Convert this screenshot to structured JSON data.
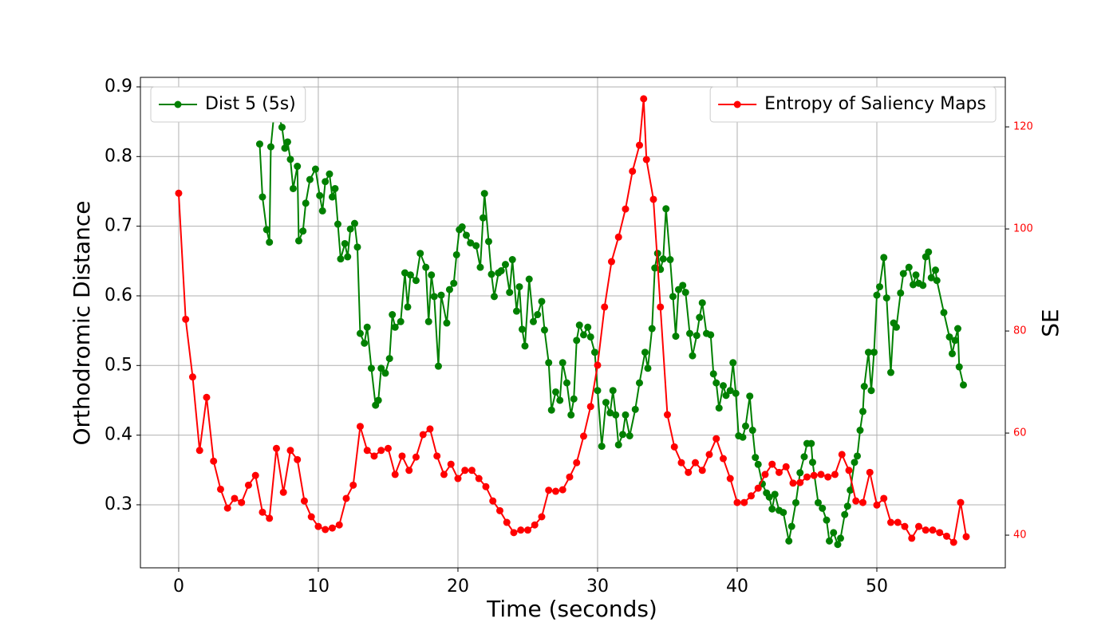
{
  "chart_data": {
    "type": "line",
    "x_label": "Time (seconds)",
    "y_label": "Orthodromic Distance",
    "y2_label": "SE",
    "xlim": [
      -2.74,
      59.2
    ],
    "xticks": [
      0,
      10,
      20,
      30,
      40,
      50
    ],
    "ylim": [
      0.2095,
      0.9137
    ],
    "yticks": [
      0.3,
      0.4,
      0.5,
      0.6,
      0.7,
      0.8,
      0.9
    ],
    "y2lim": [
      33.6,
      129.7
    ],
    "y2ticks": [
      40,
      60,
      80,
      100,
      120
    ],
    "grid": true,
    "series": [
      {
        "name": "Dist 5 (5s)",
        "color": "#008000",
        "axis": "y",
        "legend": "upper left",
        "x": [
          5.8,
          6.0,
          6.3,
          6.5,
          6.6,
          6.9,
          7.2,
          7.4,
          7.6,
          7.8,
          8.0,
          8.2,
          8.5,
          8.6,
          8.9,
          9.1,
          9.4,
          9.8,
          10.1,
          10.3,
          10.5,
          10.8,
          11.0,
          11.2,
          11.4,
          11.6,
          11.9,
          12.1,
          12.3,
          12.6,
          12.8,
          13.0,
          13.3,
          13.5,
          13.8,
          14.1,
          14.3,
          14.5,
          14.8,
          15.1,
          15.3,
          15.5,
          15.9,
          16.2,
          16.4,
          16.6,
          17.0,
          17.3,
          17.7,
          17.9,
          18.1,
          18.3,
          18.6,
          18.8,
          19.2,
          19.4,
          19.7,
          19.9,
          20.1,
          20.3,
          20.6,
          20.9,
          21.3,
          21.6,
          21.8,
          21.9,
          22.2,
          22.4,
          22.6,
          22.9,
          23.1,
          23.4,
          23.7,
          23.9,
          24.2,
          24.4,
          24.6,
          24.8,
          25.1,
          25.4,
          25.7,
          26.0,
          26.2,
          26.5,
          26.7,
          27.0,
          27.3,
          27.5,
          27.8,
          28.1,
          28.3,
          28.5,
          28.7,
          29.0,
          29.3,
          29.5,
          29.8,
          30.0,
          30.3,
          30.6,
          30.9,
          31.1,
          31.3,
          31.5,
          31.8,
          32.0,
          32.3,
          32.7,
          33.0,
          33.4,
          33.6,
          33.9,
          34.1,
          34.3,
          34.5,
          34.7,
          34.9,
          35.2,
          35.4,
          35.6,
          35.8,
          36.1,
          36.3,
          36.6,
          36.8,
          37.1,
          37.3,
          37.5,
          37.8,
          38.1,
          38.3,
          38.5,
          38.7,
          39.0,
          39.2,
          39.5,
          39.7,
          39.9,
          40.1,
          40.4,
          40.6,
          40.9,
          41.1,
          41.3,
          41.5,
          41.8,
          42.1,
          42.3,
          42.5,
          42.7,
          43.0,
          43.3,
          43.7,
          43.9,
          44.2,
          44.5,
          44.8,
          45.0,
          45.3,
          45.4,
          45.8,
          46.1,
          46.4,
          46.6,
          46.9,
          47.2,
          47.4,
          47.7,
          47.9,
          48.1,
          48.4,
          48.6,
          48.8,
          49.0,
          49.1,
          49.4,
          49.6,
          49.8,
          50.0,
          50.2,
          50.5,
          50.7,
          51.0,
          51.2,
          51.4,
          51.7,
          51.9,
          52.3,
          52.6,
          52.8,
          53.0,
          53.3,
          53.5,
          53.7,
          53.9,
          54.2,
          54.3,
          54.8,
          55.2,
          55.4,
          55.6,
          55.8,
          55.9,
          56.2
        ],
        "values": [
          0.818,
          0.742,
          0.695,
          0.677,
          0.814,
          0.876,
          0.857,
          0.842,
          0.812,
          0.821,
          0.796,
          0.754,
          0.786,
          0.679,
          0.693,
          0.733,
          0.767,
          0.782,
          0.744,
          0.722,
          0.764,
          0.775,
          0.742,
          0.754,
          0.703,
          0.653,
          0.675,
          0.656,
          0.696,
          0.704,
          0.67,
          0.546,
          0.532,
          0.555,
          0.496,
          0.443,
          0.45,
          0.496,
          0.489,
          0.51,
          0.573,
          0.555,
          0.563,
          0.633,
          0.584,
          0.63,
          0.622,
          0.661,
          0.641,
          0.563,
          0.63,
          0.599,
          0.499,
          0.601,
          0.561,
          0.609,
          0.618,
          0.659,
          0.695,
          0.699,
          0.687,
          0.676,
          0.672,
          0.641,
          0.712,
          0.747,
          0.678,
          0.631,
          0.599,
          0.633,
          0.636,
          0.645,
          0.605,
          0.652,
          0.578,
          0.613,
          0.552,
          0.528,
          0.624,
          0.563,
          0.573,
          0.592,
          0.551,
          0.504,
          0.436,
          0.462,
          0.45,
          0.504,
          0.475,
          0.429,
          0.452,
          0.536,
          0.558,
          0.544,
          0.555,
          0.541,
          0.519,
          0.464,
          0.384,
          0.447,
          0.432,
          0.464,
          0.429,
          0.386,
          0.401,
          0.429,
          0.399,
          0.437,
          0.475,
          0.519,
          0.496,
          0.553,
          0.64,
          0.661,
          0.638,
          0.653,
          0.725,
          0.652,
          0.599,
          0.542,
          0.609,
          0.615,
          0.605,
          0.546,
          0.514,
          0.543,
          0.569,
          0.59,
          0.546,
          0.544,
          0.488,
          0.475,
          0.439,
          0.471,
          0.457,
          0.464,
          0.504,
          0.46,
          0.399,
          0.397,
          0.413,
          0.456,
          0.407,
          0.368,
          0.358,
          0.33,
          0.317,
          0.311,
          0.294,
          0.315,
          0.292,
          0.289,
          0.248,
          0.269,
          0.303,
          0.346,
          0.369,
          0.388,
          0.388,
          0.361,
          0.303,
          0.295,
          0.278,
          0.248,
          0.26,
          0.243,
          0.252,
          0.286,
          0.298,
          0.321,
          0.361,
          0.37,
          0.407,
          0.434,
          0.47,
          0.519,
          0.464,
          0.519,
          0.601,
          0.613,
          0.655,
          0.597,
          0.49,
          0.561,
          0.555,
          0.604,
          0.632,
          0.641,
          0.616,
          0.63,
          0.618,
          0.615,
          0.656,
          0.663,
          0.626,
          0.637,
          0.622,
          0.576,
          0.541,
          0.517,
          0.536,
          0.553,
          0.498,
          0.472
        ]
      },
      {
        "name": "Entropy of Saliency Maps",
        "color": "#ff0000",
        "axis": "y2",
        "legend": "upper right",
        "x": [
          0,
          0.5,
          1.0,
          1.5,
          2.0,
          2.5,
          3.0,
          3.5,
          4.0,
          4.5,
          5.0,
          5.5,
          6.0,
          6.5,
          7.0,
          7.5,
          8.0,
          8.5,
          9.0,
          9.5,
          10.0,
          10.5,
          11.0,
          11.5,
          12.0,
          12.5,
          13.0,
          13.5,
          14.0,
          14.5,
          15.0,
          15.5,
          16.0,
          16.5,
          17.0,
          17.5,
          18.0,
          18.5,
          19.0,
          19.5,
          20.0,
          20.5,
          21.0,
          21.5,
          22.0,
          22.5,
          23.0,
          23.5,
          24.0,
          24.5,
          25.0,
          25.5,
          26.0,
          26.5,
          27.0,
          27.5,
          28.0,
          28.5,
          29.0,
          29.5,
          30.0,
          30.5,
          31.0,
          31.5,
          32.0,
          32.5,
          33.0,
          33.3,
          33.5,
          34.0,
          34.5,
          35.0,
          35.5,
          36.0,
          36.5,
          37.0,
          37.5,
          38.0,
          38.5,
          39.0,
          39.5,
          40.0,
          40.5,
          41.0,
          41.5,
          42.0,
          42.5,
          43.0,
          43.5,
          44.0,
          44.5,
          45.0,
          45.5,
          46.0,
          46.5,
          47.0,
          47.5,
          48.0,
          48.5,
          49.0,
          49.5,
          50.0,
          50.5,
          51.0,
          51.5,
          52.0,
          52.5,
          53.0,
          53.5,
          54.0,
          54.5,
          55.0,
          55.5,
          56.0,
          56.4
        ],
        "values": [
          107.0,
          82.3,
          71.0,
          56.6,
          67.0,
          54.5,
          49.0,
          45.3,
          47.2,
          46.4,
          49.8,
          51.7,
          44.5,
          43.3,
          57.0,
          48.4,
          56.6,
          54.8,
          46.7,
          43.6,
          41.7,
          41.1,
          41.4,
          42.0,
          47.2,
          49.8,
          61.3,
          56.6,
          55.5,
          56.6,
          57.0,
          51.9,
          55.5,
          52.7,
          55.3,
          59.7,
          60.8,
          55.5,
          51.9,
          53.9,
          51.1,
          52.7,
          52.7,
          51.1,
          49.5,
          46.7,
          44.8,
          42.5,
          40.5,
          41.0,
          41.0,
          42.0,
          43.6,
          48.8,
          48.6,
          48.9,
          51.4,
          54.2,
          59.4,
          65.2,
          73.3,
          84.7,
          93.6,
          98.4,
          103.9,
          111.3,
          116.4,
          125.5,
          113.6,
          105.8,
          84.7,
          63.6,
          57.3,
          54.2,
          52.3,
          54.2,
          52.7,
          55.8,
          58.9,
          55.0,
          51.1,
          46.4,
          46.4,
          47.7,
          49.2,
          51.9,
          53.9,
          52.3,
          53.4,
          50.2,
          50.3,
          51.4,
          51.7,
          51.9,
          51.4,
          51.9,
          55.8,
          52.7,
          46.7,
          46.4,
          52.3,
          45.9,
          47.2,
          42.5,
          42.5,
          41.7,
          39.4,
          41.7,
          41.0,
          41.0,
          40.5,
          39.8,
          38.6,
          46.4,
          39.7
        ]
      }
    ]
  }
}
